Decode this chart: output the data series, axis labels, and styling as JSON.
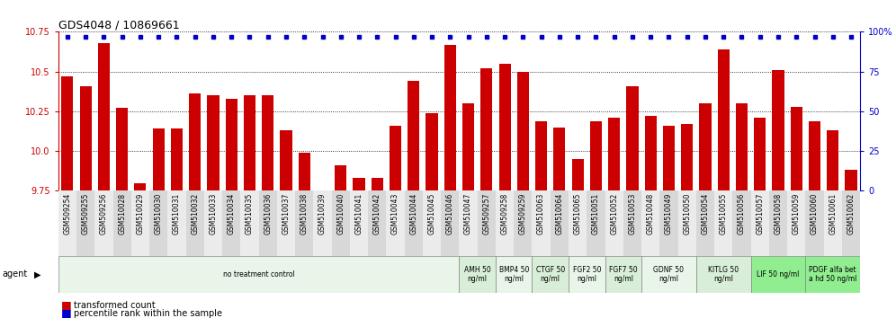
{
  "title": "GDS4048 / 10869661",
  "samples": [
    "GSM509254",
    "GSM509255",
    "GSM509256",
    "GSM510028",
    "GSM510029",
    "GSM510030",
    "GSM510031",
    "GSM510032",
    "GSM510033",
    "GSM510034",
    "GSM510035",
    "GSM510036",
    "GSM510037",
    "GSM510038",
    "GSM510039",
    "GSM510040",
    "GSM510041",
    "GSM510042",
    "GSM510043",
    "GSM510044",
    "GSM510045",
    "GSM510046",
    "GSM510047",
    "GSM509257",
    "GSM509258",
    "GSM509259",
    "GSM510063",
    "GSM510064",
    "GSM510065",
    "GSM510051",
    "GSM510052",
    "GSM510053",
    "GSM510048",
    "GSM510049",
    "GSM510050",
    "GSM510054",
    "GSM510055",
    "GSM510056",
    "GSM510057",
    "GSM510058",
    "GSM510059",
    "GSM510060",
    "GSM510061",
    "GSM510062"
  ],
  "bar_values": [
    10.47,
    10.41,
    10.68,
    10.27,
    9.8,
    10.14,
    10.14,
    10.36,
    10.35,
    10.33,
    10.35,
    10.35,
    10.13,
    9.99,
    9.75,
    9.91,
    9.83,
    9.83,
    10.16,
    10.44,
    10.24,
    10.67,
    10.3,
    10.52,
    10.55,
    10.5,
    10.19,
    10.15,
    9.95,
    10.19,
    10.21,
    10.41,
    10.22,
    10.16,
    10.17,
    10.3,
    10.64,
    10.3,
    10.21,
    10.51,
    10.28,
    10.19,
    10.13,
    9.88
  ],
  "percentile_values": [
    100,
    100,
    100,
    100,
    100,
    100,
    100,
    100,
    100,
    100,
    100,
    100,
    100,
    100,
    100,
    100,
    100,
    100,
    100,
    100,
    100,
    100,
    100,
    100,
    100,
    100,
    100,
    100,
    100,
    100,
    100,
    100,
    100,
    100,
    100,
    100,
    100,
    100,
    100,
    100,
    100,
    100,
    100,
    100
  ],
  "ylim_left": [
    9.75,
    10.75
  ],
  "ylim_right": [
    0,
    100
  ],
  "yticks_left": [
    9.75,
    10.0,
    10.25,
    10.5,
    10.75
  ],
  "yticks_right": [
    0,
    25,
    50,
    75,
    100
  ],
  "bar_color": "#cc0000",
  "dot_color": "#0000cc",
  "agent_groups": [
    {
      "label": "no treatment control",
      "start": 0,
      "end": 22,
      "color": "#e8f5e8"
    },
    {
      "label": "AMH 50\nng/ml",
      "start": 22,
      "end": 24,
      "color": "#d8eed8"
    },
    {
      "label": "BMP4 50\nng/ml",
      "start": 24,
      "end": 26,
      "color": "#e8f5e8"
    },
    {
      "label": "CTGF 50\nng/ml",
      "start": 26,
      "end": 28,
      "color": "#d8eed8"
    },
    {
      "label": "FGF2 50\nng/ml",
      "start": 28,
      "end": 30,
      "color": "#e8f5e8"
    },
    {
      "label": "FGF7 50\nng/ml",
      "start": 30,
      "end": 32,
      "color": "#d8eed8"
    },
    {
      "label": "GDNF 50\nng/ml",
      "start": 32,
      "end": 35,
      "color": "#e8f5e8"
    },
    {
      "label": "KITLG 50\nng/ml",
      "start": 35,
      "end": 38,
      "color": "#d8eed8"
    },
    {
      "label": "LIF 50 ng/ml",
      "start": 38,
      "end": 41,
      "color": "#90ee90"
    },
    {
      "label": "PDGF alfa bet\na hd 50 ng/ml",
      "start": 41,
      "end": 44,
      "color": "#90ee90"
    }
  ],
  "legend_labels": [
    "transformed count",
    "percentile rank within the sample"
  ],
  "legend_colors": [
    "#cc0000",
    "#0000cc"
  ]
}
